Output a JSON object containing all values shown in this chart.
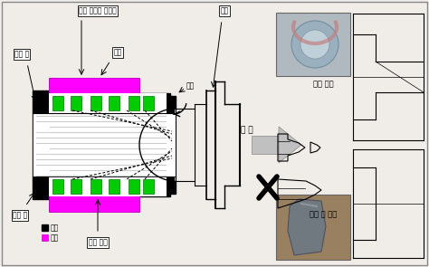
{
  "labels": {
    "daecha_frame": "대차 사이드 프레임",
    "end_cap": "엔드 캡",
    "chayuk": "차축",
    "charoun": "차륜",
    "hoejeon": "회전",
    "roller_heat": "롤러 발열",
    "oil_seal": "오일 씰",
    "gyeolson": "결 손",
    "chayuk_gyeolson": "차축 절손",
    "endcap_talrak": "엔드 캡 탈락",
    "legend_rotate": "회전",
    "legend_fixed": "고정"
  },
  "colors": {
    "magenta": "#ff00ff",
    "green": "#00cc00",
    "black": "#000000",
    "white": "#ffffff",
    "light_gray": "#d0d0d0",
    "mid_gray": "#aaaaaa",
    "bg": "#f0ede8"
  }
}
